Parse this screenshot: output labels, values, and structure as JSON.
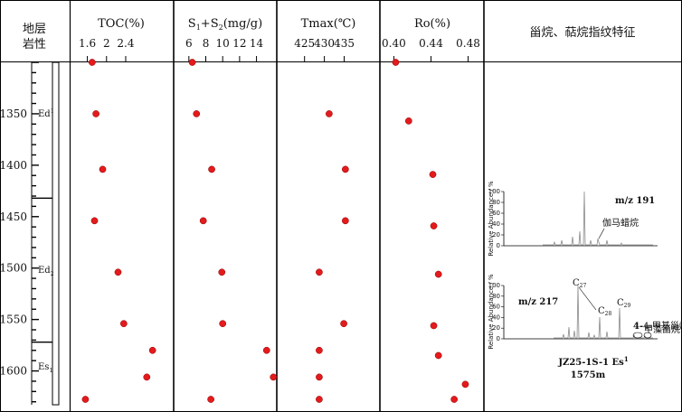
{
  "chart_data": {
    "type": "scatter",
    "depth_axis": {
      "label": "",
      "ticks": [
        1350,
        1400,
        1450,
        1500,
        1550,
        1600
      ],
      "range": [
        1300,
        1625
      ]
    },
    "header": {
      "strat_label_line1": "地层",
      "strat_label_line2": "岩性",
      "fingerprint_title": "甾烷、萜烷指纹特征"
    },
    "strata": [
      {
        "name": "Ed",
        "sup": "1",
        "sub": "",
        "range": [
          1300,
          1432
        ],
        "label_depth": 1350
      },
      {
        "name": "Ed",
        "sup": "",
        "sub": "2",
        "range": [
          1432,
          1572
        ],
        "label_depth": 1502
      },
      {
        "name": "Es",
        "sup": "",
        "sub": "1",
        "range": [
          1572,
          1625
        ],
        "label_depth": 1596
      }
    ],
    "panels": [
      {
        "id": "toc",
        "title_parts": [
          [
            "TOC(%)",
            ""
          ]
        ],
        "xlim": [
          1.25,
          3.4
        ],
        "ticks": [
          1.6,
          2,
          2.4
        ],
        "tick_labels": [
          "1.6",
          "2",
          "2.4"
        ],
        "points": [
          [
            1.7,
            1300
          ],
          [
            1.78,
            1350
          ],
          [
            1.92,
            1404
          ],
          [
            1.75,
            1454
          ],
          [
            2.24,
            1504
          ],
          [
            2.36,
            1554
          ],
          [
            2.96,
            1580
          ],
          [
            2.84,
            1606
          ],
          [
            1.56,
            1634
          ]
        ]
      },
      {
        "id": "s1s2",
        "title_parts": [
          [
            "S",
            ""
          ],
          [
            "1",
            "sub"
          ],
          [
            "+S",
            ""
          ],
          [
            "2",
            "sub"
          ],
          [
            "(mg/g)",
            ""
          ]
        ],
        "xlim": [
          4.2,
          16.4
        ],
        "ticks": [
          6,
          8,
          10,
          12,
          14
        ],
        "tick_labels": [
          "6",
          "8",
          "10",
          "12",
          "14"
        ],
        "points": [
          [
            6.4,
            1300
          ],
          [
            6.9,
            1350
          ],
          [
            8.7,
            1404
          ],
          [
            7.7,
            1454
          ],
          [
            9.9,
            1504
          ],
          [
            10.0,
            1554
          ],
          [
            15.2,
            1580
          ],
          [
            16.0,
            1606
          ],
          [
            8.6,
            1634
          ]
        ]
      },
      {
        "id": "tmax",
        "title_parts": [
          [
            "Tmax(℃)",
            ""
          ]
        ],
        "xlim": [
          418,
          444
        ],
        "ticks": [
          425,
          430,
          435
        ],
        "tick_labels": [
          "425",
          "430",
          "435"
        ],
        "points": [
          [
            431.2,
            1350
          ],
          [
            435.3,
            1404
          ],
          [
            435.3,
            1454
          ],
          [
            428.7,
            1504
          ],
          [
            434.9,
            1554
          ],
          [
            428.7,
            1580
          ],
          [
            428.7,
            1606
          ],
          [
            428.7,
            1634
          ]
        ]
      },
      {
        "id": "ro",
        "title_parts": [
          [
            "Ro(%)",
            ""
          ]
        ],
        "xlim": [
          0.385,
          0.497
        ],
        "ticks": [
          0.4,
          0.44,
          0.48
        ],
        "tick_labels": [
          "0.40",
          "0.44",
          "0.48"
        ],
        "points": [
          [
            0.402,
            1300
          ],
          [
            0.416,
            1357
          ],
          [
            0.442,
            1409
          ],
          [
            0.443,
            1459
          ],
          [
            0.448,
            1506
          ],
          [
            0.443,
            1556
          ],
          [
            0.448,
            1585
          ],
          [
            0.477,
            1613
          ],
          [
            0.465,
            1638
          ]
        ]
      }
    ],
    "fingerprints": {
      "upper": {
        "mz": "m/z 191",
        "ylabel": "Relative Abundance / %",
        "yticks": [
          "100",
          "80",
          "60",
          "40",
          "20",
          "0"
        ],
        "annotation": "伽马蜡烷"
      },
      "lower": {
        "mz": "m/z 217",
        "ylabel": "Relative Abundance / %",
        "yticks": [
          "100",
          "80",
          "60",
          "40",
          "20",
          "0"
        ],
        "peaks": [
          {
            "c": "C",
            "sub": "27"
          },
          {
            "c": "C",
            "sub": "28"
          },
          {
            "c": "C",
            "sub": "29"
          }
        ],
        "annot1": "4-甲基甾烷",
        "annot2": "甲藻甾烷"
      },
      "sample": {
        "well": "JZ25-1S-1 Es",
        "well_sup": "1",
        "depth": "1575m"
      }
    },
    "colors": {
      "point": "#e41a1c",
      "point_edge": "#8b0000",
      "line": "#000000",
      "trace": "#8a8a8a"
    }
  }
}
